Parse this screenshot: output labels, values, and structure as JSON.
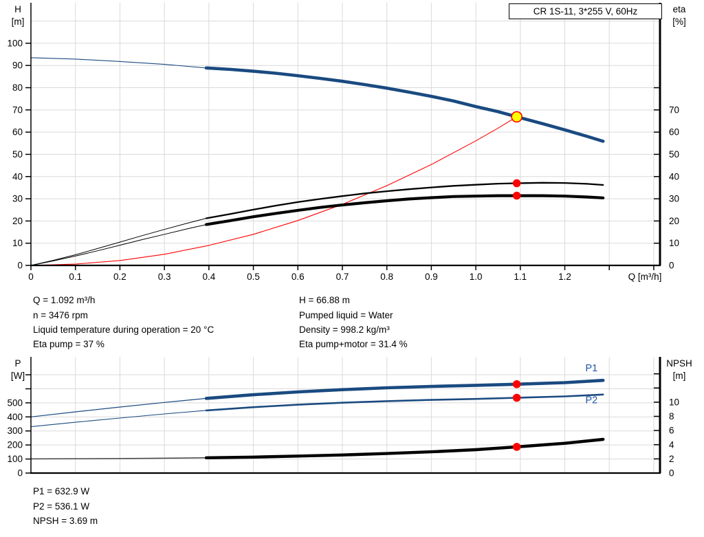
{
  "title_box": {
    "text": "CR 1S-11, 3*255 V, 60Hz"
  },
  "info_top": {
    "left": [
      "Q = 1.092 m³/h",
      "n = 3476 rpm",
      "Liquid temperature during operation = 20 °C",
      "Eta pump = 37 %"
    ],
    "right": [
      "H = 66.88 m",
      "Pumped liquid = Water",
      "Density = 998.2 kg/m³",
      "Eta pump+motor = 31.4 %"
    ]
  },
  "info_bottom": [
    "P1 = 632.9 W",
    "P2 = 536.1 W",
    "NPSH = 3.69 m"
  ],
  "colors": {
    "curve_blue": "#1a4a80",
    "curve_black": "#000000",
    "curve_red": "#ff0000",
    "npsh_thin_gray": "#444444",
    "grid": "#d9d9d9",
    "axis": "#000000",
    "marker_red": "#ff0000",
    "marker_yellow": "#ffff00",
    "label_blue": "#2055a4"
  },
  "chart_data": [
    {
      "type": "line",
      "name": "qh-eta-chart",
      "x": {
        "label": "Q [m³/h]",
        "range": [
          0,
          1.414
        ],
        "ticks": [
          0,
          0.1,
          0.2,
          0.3,
          0.4,
          0.5,
          0.6,
          0.7,
          0.8,
          0.9,
          1.0,
          1.1,
          1.2,
          1.3,
          1.4
        ],
        "tick_labels": [
          "0",
          "0.1",
          "0.2",
          "0.3",
          "0.4",
          "0.5",
          "0.6",
          "0.7",
          "0.8",
          "0.9",
          "1.0",
          "1.1",
          "1.2"
        ]
      },
      "y_left": {
        "label_lines": [
          "H",
          "[m]"
        ],
        "range": [
          0,
          117
        ],
        "ticks": [
          0,
          10,
          20,
          30,
          40,
          50,
          60,
          70,
          80,
          90,
          100
        ],
        "labeled": [
          0,
          10,
          20,
          30,
          40,
          50,
          60,
          70,
          80,
          90,
          100
        ],
        "grid_lines": [
          10,
          20,
          30,
          40,
          50,
          60,
          70,
          80,
          90,
          100,
          110
        ]
      },
      "y_right": {
        "label_lines": [
          "eta",
          "[%]"
        ],
        "range": [
          0,
          117
        ],
        "ticks": [
          0,
          10,
          20,
          30,
          40,
          50,
          60,
          70,
          80
        ],
        "labeled": [
          0,
          10,
          20,
          30,
          40,
          50,
          60,
          70
        ]
      },
      "series": [
        {
          "name": "head-thin",
          "axis": "left",
          "color": "#1a4a80",
          "width": 1.1,
          "points": [
            [
              0,
              93.5
            ],
            [
              0.1,
              92.9
            ],
            [
              0.2,
              91.8
            ],
            [
              0.3,
              90.5
            ],
            [
              0.394,
              88.9
            ]
          ]
        },
        {
          "name": "eta-pump-thin",
          "axis": "right",
          "color": "#000000",
          "width": 1.0,
          "points": [
            [
              0,
              0
            ],
            [
              0.05,
              2.3
            ],
            [
              0.1,
              4.8
            ],
            [
              0.15,
              7.6
            ],
            [
              0.2,
              10.5
            ],
            [
              0.25,
              13.4
            ],
            [
              0.3,
              16.2
            ],
            [
              0.35,
              18.9
            ],
            [
              0.394,
              21.2
            ]
          ]
        },
        {
          "name": "eta-pump-motor-thin",
          "axis": "right",
          "color": "#000000",
          "width": 1.0,
          "points": [
            [
              0,
              0
            ],
            [
              0.05,
              2.0
            ],
            [
              0.1,
              4.2
            ],
            [
              0.15,
              6.6
            ],
            [
              0.2,
              9.1
            ],
            [
              0.25,
              11.6
            ],
            [
              0.3,
              14.0
            ],
            [
              0.35,
              16.4
            ],
            [
              0.394,
              18.4
            ]
          ]
        },
        {
          "name": "system-curve",
          "axis": "left",
          "color": "#ff0000",
          "width": 1.1,
          "points": [
            [
              0,
              0
            ],
            [
              0.1,
              0.6
            ],
            [
              0.2,
              2.2
            ],
            [
              0.3,
              5.0
            ],
            [
              0.4,
              9.0
            ],
            [
              0.5,
              14.0
            ],
            [
              0.6,
              20.2
            ],
            [
              0.7,
              27.5
            ],
            [
              0.8,
              35.9
            ],
            [
              0.9,
              45.4
            ],
            [
              1.0,
              56.1
            ],
            [
              1.05,
              61.8
            ],
            [
              1.092,
              66.88
            ]
          ]
        },
        {
          "name": "eta-pump",
          "axis": "right",
          "color": "#000000",
          "width": 2.3,
          "points": [
            [
              0.394,
              21.2
            ],
            [
              0.45,
              23.2
            ],
            [
              0.5,
              25.1
            ],
            [
              0.55,
              26.9
            ],
            [
              0.6,
              28.5
            ],
            [
              0.65,
              29.9
            ],
            [
              0.7,
              31.2
            ],
            [
              0.75,
              32.4
            ],
            [
              0.8,
              33.4
            ],
            [
              0.85,
              34.3
            ],
            [
              0.9,
              35.1
            ],
            [
              0.95,
              35.8
            ],
            [
              1.0,
              36.3
            ],
            [
              1.05,
              36.8
            ],
            [
              1.092,
              37.0
            ],
            [
              1.15,
              37.2
            ],
            [
              1.2,
              37.1
            ],
            [
              1.25,
              36.7
            ],
            [
              1.286,
              36.2
            ]
          ]
        },
        {
          "name": "eta-pump-motor",
          "axis": "right",
          "color": "#000000",
          "width": 4.2,
          "points": [
            [
              0.394,
              18.4
            ],
            [
              0.45,
              20.2
            ],
            [
              0.5,
              21.9
            ],
            [
              0.55,
              23.4
            ],
            [
              0.6,
              24.8
            ],
            [
              0.65,
              26.1
            ],
            [
              0.7,
              27.2
            ],
            [
              0.75,
              28.2
            ],
            [
              0.8,
              29.1
            ],
            [
              0.85,
              29.9
            ],
            [
              0.9,
              30.5
            ],
            [
              0.95,
              31.0
            ],
            [
              1.0,
              31.2
            ],
            [
              1.05,
              31.4
            ],
            [
              1.092,
              31.4
            ],
            [
              1.15,
              31.4
            ],
            [
              1.2,
              31.2
            ],
            [
              1.25,
              30.8
            ],
            [
              1.286,
              30.4
            ]
          ]
        },
        {
          "name": "head",
          "axis": "left",
          "color": "#1a4a80",
          "width": 4.6,
          "points": [
            [
              0.394,
              88.9
            ],
            [
              0.45,
              88.2
            ],
            [
              0.5,
              87.4
            ],
            [
              0.55,
              86.5
            ],
            [
              0.6,
              85.4
            ],
            [
              0.65,
              84.2
            ],
            [
              0.7,
              82.9
            ],
            [
              0.75,
              81.4
            ],
            [
              0.8,
              79.8
            ],
            [
              0.85,
              78.0
            ],
            [
              0.9,
              76.1
            ],
            [
              0.95,
              74.0
            ],
            [
              1.0,
              71.5
            ],
            [
              1.05,
              69.2
            ],
            [
              1.092,
              66.9
            ],
            [
              1.15,
              63.8
            ],
            [
              1.2,
              61.0
            ],
            [
              1.25,
              58.1
            ],
            [
              1.286,
              55.9
            ]
          ]
        }
      ],
      "markers": [
        {
          "name": "eta-pump-point",
          "q": 1.092,
          "v": 37.0,
          "axis": "right",
          "kind": "dot"
        },
        {
          "name": "eta-pump-motor-point",
          "q": 1.092,
          "v": 31.4,
          "axis": "right",
          "kind": "dot"
        },
        {
          "name": "duty-point",
          "q": 1.092,
          "v": 66.88,
          "axis": "left",
          "kind": "duty"
        }
      ],
      "curve_labels": []
    },
    {
      "type": "line",
      "name": "power-npsh-chart",
      "x": {
        "range": [
          0,
          1.414
        ],
        "ticks": [
          0,
          0.1,
          0.2,
          0.3,
          0.4,
          0.5,
          0.6,
          0.7,
          0.8,
          0.9,
          1.0,
          1.1,
          1.2,
          1.3,
          1.4
        ]
      },
      "y_left": {
        "label_lines": [
          "P",
          "[W]"
        ],
        "range": [
          0,
          808
        ],
        "ticks": [
          0,
          100,
          200,
          300,
          400,
          500,
          600,
          700
        ],
        "labeled": [
          0,
          100,
          200,
          300,
          400,
          500
        ],
        "grid_lines": [
          100,
          200,
          300,
          400,
          500,
          600,
          700
        ]
      },
      "y_right": {
        "label_lines": [
          "NPSH",
          "[m]"
        ],
        "range": [
          0,
          16
        ],
        "ticks": [
          0,
          2,
          4,
          6,
          8,
          10,
          12,
          14
        ],
        "labeled": [
          0,
          2,
          4,
          6,
          8,
          10
        ]
      },
      "series": [
        {
          "name": "p1-thin",
          "axis": "left",
          "color": "#1a4a80",
          "width": 1.2,
          "points": [
            [
              0,
              400
            ],
            [
              0.1,
              436
            ],
            [
              0.2,
              470
            ],
            [
              0.3,
              503
            ],
            [
              0.394,
              532
            ]
          ]
        },
        {
          "name": "p2-thin",
          "axis": "left",
          "color": "#1a4a80",
          "width": 1.1,
          "points": [
            [
              0,
              330
            ],
            [
              0.1,
              362
            ],
            [
              0.2,
              392
            ],
            [
              0.3,
              421
            ],
            [
              0.394,
              446
            ]
          ]
        },
        {
          "name": "npsh-thin",
          "axis": "right",
          "color": "#444444",
          "width": 1.5,
          "points": [
            [
              0,
              2.0
            ],
            [
              0.2,
              2.05
            ],
            [
              0.394,
              2.15
            ]
          ]
        },
        {
          "name": "p2",
          "axis": "left",
          "color": "#1a4a80",
          "width": 2.6,
          "points": [
            [
              0.394,
              446
            ],
            [
              0.5,
              469
            ],
            [
              0.6,
              487
            ],
            [
              0.7,
              501
            ],
            [
              0.8,
              512
            ],
            [
              0.9,
              521
            ],
            [
              1.0,
              528
            ],
            [
              1.092,
              536.1
            ],
            [
              1.2,
              546
            ],
            [
              1.286,
              559
            ]
          ]
        },
        {
          "name": "p1",
          "axis": "left",
          "color": "#1a4a80",
          "width": 4.6,
          "points": [
            [
              0.394,
              532
            ],
            [
              0.5,
              558
            ],
            [
              0.6,
              578
            ],
            [
              0.7,
              594
            ],
            [
              0.8,
              607
            ],
            [
              0.9,
              617
            ],
            [
              1.0,
              625
            ],
            [
              1.092,
              632.9
            ],
            [
              1.2,
              644
            ],
            [
              1.286,
              660
            ]
          ]
        },
        {
          "name": "npsh",
          "axis": "right",
          "color": "#000000",
          "width": 4.4,
          "points": [
            [
              0.394,
              2.15
            ],
            [
              0.5,
              2.25
            ],
            [
              0.6,
              2.4
            ],
            [
              0.7,
              2.55
            ],
            [
              0.8,
              2.75
            ],
            [
              0.9,
              3.0
            ],
            [
              1.0,
              3.3
            ],
            [
              1.092,
              3.69
            ],
            [
              1.2,
              4.2
            ],
            [
              1.286,
              4.75
            ]
          ]
        }
      ],
      "markers": [
        {
          "name": "p1-point",
          "q": 1.092,
          "v": 632.9,
          "axis": "left",
          "kind": "dot"
        },
        {
          "name": "p2-point",
          "q": 1.092,
          "v": 536.1,
          "axis": "left",
          "kind": "dot"
        },
        {
          "name": "npsh-point",
          "q": 1.092,
          "v": 3.69,
          "axis": "right",
          "kind": "dot"
        }
      ],
      "curve_labels": [
        {
          "text": "P1",
          "q": 1.26,
          "v": 725,
          "axis": "left",
          "color": "#2055a4"
        },
        {
          "text": "P2",
          "q": 1.26,
          "v": 498,
          "axis": "left",
          "color": "#2055a4"
        }
      ]
    }
  ]
}
